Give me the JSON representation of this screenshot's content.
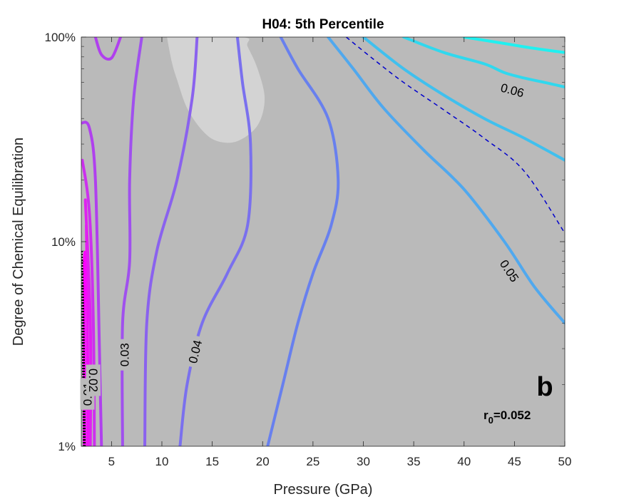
{
  "chart_data": {
    "type": "contour",
    "title": "H04: 5th Percentile",
    "xlabel": "Pressure (GPa)",
    "ylabel": "Degree of Chemical Equilibration",
    "xlim": [
      2,
      50
    ],
    "ylim": [
      1,
      100
    ],
    "yscale": "log",
    "xticks": [
      "5",
      "10",
      "15",
      "20",
      "25",
      "30",
      "35",
      "40",
      "45",
      "50"
    ],
    "yticks": [
      "1%",
      "10%",
      "100%"
    ],
    "panel_letter": "b",
    "annotation": {
      "base": "r",
      "sub": "0",
      "rest": "=0.052"
    },
    "colors": {
      "background": "#bababa",
      "highlight_region": "#d3d3d3",
      "dashed_contour": "#0000cc",
      "boundary": "#000000"
    },
    "contours": [
      {
        "level": "0.01",
        "color": "#ff00ff",
        "points": [
          [
            2.3,
            1
          ],
          [
            2.3,
            3
          ],
          [
            2.3,
            8
          ],
          [
            2.5,
            8
          ],
          [
            2.6,
            4
          ],
          [
            2.7,
            1
          ]
        ],
        "label": {
          "x": 2.6,
          "y": 1.8
        }
      },
      {
        "level": "",
        "color": "#f010f8",
        "points": [
          [
            2.6,
            1
          ],
          [
            2.6,
            5
          ],
          [
            2.5,
            12
          ]
        ]
      },
      {
        "level": "",
        "color": "#e020f0",
        "points": [
          [
            2.9,
            1
          ],
          [
            2.9,
            4
          ],
          [
            2.4,
            16
          ]
        ]
      },
      {
        "level": "0.02",
        "color": "#cc30ee",
        "points": [
          [
            3.3,
            1
          ],
          [
            3.2,
            4
          ],
          [
            2.8,
            14
          ],
          [
            2.1,
            25
          ]
        ],
        "label": {
          "x": 3.2,
          "y": 2.1
        }
      },
      {
        "level": "",
        "color": "#b040ee",
        "points": [
          [
            4,
            1
          ],
          [
            3.8,
            3
          ],
          [
            3.4,
            20
          ],
          [
            2.8,
            36
          ],
          [
            2,
            38
          ]
        ]
      },
      {
        "level": "",
        "color": "#b040ee",
        "points": [
          [
            3.4,
            100
          ],
          [
            4,
            82
          ],
          [
            5,
            79
          ],
          [
            5.9,
            100
          ]
        ]
      },
      {
        "level": "0.03",
        "color": "#a050ee",
        "points": [
          [
            6.1,
            1
          ],
          [
            6.1,
            4
          ],
          [
            6.8,
            8
          ],
          [
            6.8,
            20
          ],
          [
            7.2,
            50
          ],
          [
            8,
            100
          ]
        ],
        "label": {
          "x": 6.3,
          "y": 2.8
        }
      },
      {
        "level": "",
        "color": "#8a62ee",
        "points": [
          [
            8.3,
            1
          ],
          [
            8.5,
            4
          ],
          [
            9.5,
            9
          ],
          [
            11.5,
            20
          ],
          [
            13,
            50
          ],
          [
            13.5,
            100
          ]
        ]
      },
      {
        "level": "0.04",
        "color": "#7a70ee",
        "points": [
          [
            11.8,
            1
          ],
          [
            12.5,
            2
          ],
          [
            14,
            4
          ],
          [
            16.5,
            7
          ],
          [
            18.5,
            12
          ],
          [
            18.8,
            30
          ],
          [
            18,
            60
          ],
          [
            17.5,
            100
          ]
        ],
        "label": {
          "x": 13.3,
          "y": 2.9
        }
      },
      {
        "level": "",
        "color": "#6880ee",
        "points": [
          [
            20.5,
            1
          ],
          [
            22,
            2
          ],
          [
            23.5,
            4
          ],
          [
            25,
            7
          ],
          [
            26.8,
            12
          ],
          [
            27.5,
            20
          ],
          [
            26.5,
            40
          ],
          [
            23.5,
            70
          ],
          [
            21.8,
            100
          ]
        ]
      },
      {
        "level": "0.05",
        "color": "#50a8ee",
        "points": [
          [
            26.5,
            100
          ],
          [
            29,
            70
          ],
          [
            32,
            45
          ],
          [
            36,
            28
          ],
          [
            40,
            18
          ],
          [
            44,
            10
          ],
          [
            47,
            6
          ],
          [
            50,
            4
          ]
        ],
        "label": {
          "x": 44.5,
          "y": 7.2
        }
      },
      {
        "level": "",
        "color": "#40c0ee",
        "points": [
          [
            30,
            100
          ],
          [
            34,
            70
          ],
          [
            38,
            52
          ],
          [
            42,
            40
          ],
          [
            46,
            32
          ],
          [
            50,
            25
          ]
        ]
      },
      {
        "level": "0.06",
        "color": "#30d8ee",
        "points": [
          [
            34,
            100
          ],
          [
            38,
            84
          ],
          [
            42,
            74
          ],
          [
            44,
            67
          ],
          [
            46,
            63
          ],
          [
            48,
            60
          ],
          [
            50,
            57
          ]
        ],
        "label": {
          "x": 44.8,
          "y": 55
        }
      },
      {
        "level": "",
        "color": "#20f0f0",
        "points": [
          [
            40,
            100
          ],
          [
            44,
            93
          ],
          [
            47,
            88
          ],
          [
            50,
            84
          ]
        ]
      }
    ],
    "dashed_contour": {
      "color": "#0000cc",
      "points": [
        [
          28.3,
          100
        ],
        [
          31,
          78
        ],
        [
          34,
          60
        ],
        [
          38,
          44
        ],
        [
          42,
          32
        ],
        [
          46,
          22
        ],
        [
          50,
          11
        ]
      ]
    },
    "boundary_line": {
      "color": "#000000",
      "points": [
        [
          2,
          9
        ],
        [
          2.1,
          6
        ],
        [
          2.2,
          3
        ],
        [
          2.3,
          1
        ]
      ]
    },
    "highlight_region": {
      "color": "#d3d3d3",
      "points": [
        [
          10.5,
          100
        ],
        [
          11,
          75
        ],
        [
          11.5,
          62
        ],
        [
          12.5,
          45
        ],
        [
          14,
          35
        ],
        [
          15.5,
          31
        ],
        [
          17.5,
          31
        ],
        [
          19.5,
          37
        ],
        [
          20.2,
          50
        ],
        [
          19.5,
          70
        ],
        [
          18.5,
          90
        ],
        [
          18,
          100
        ]
      ]
    }
  }
}
